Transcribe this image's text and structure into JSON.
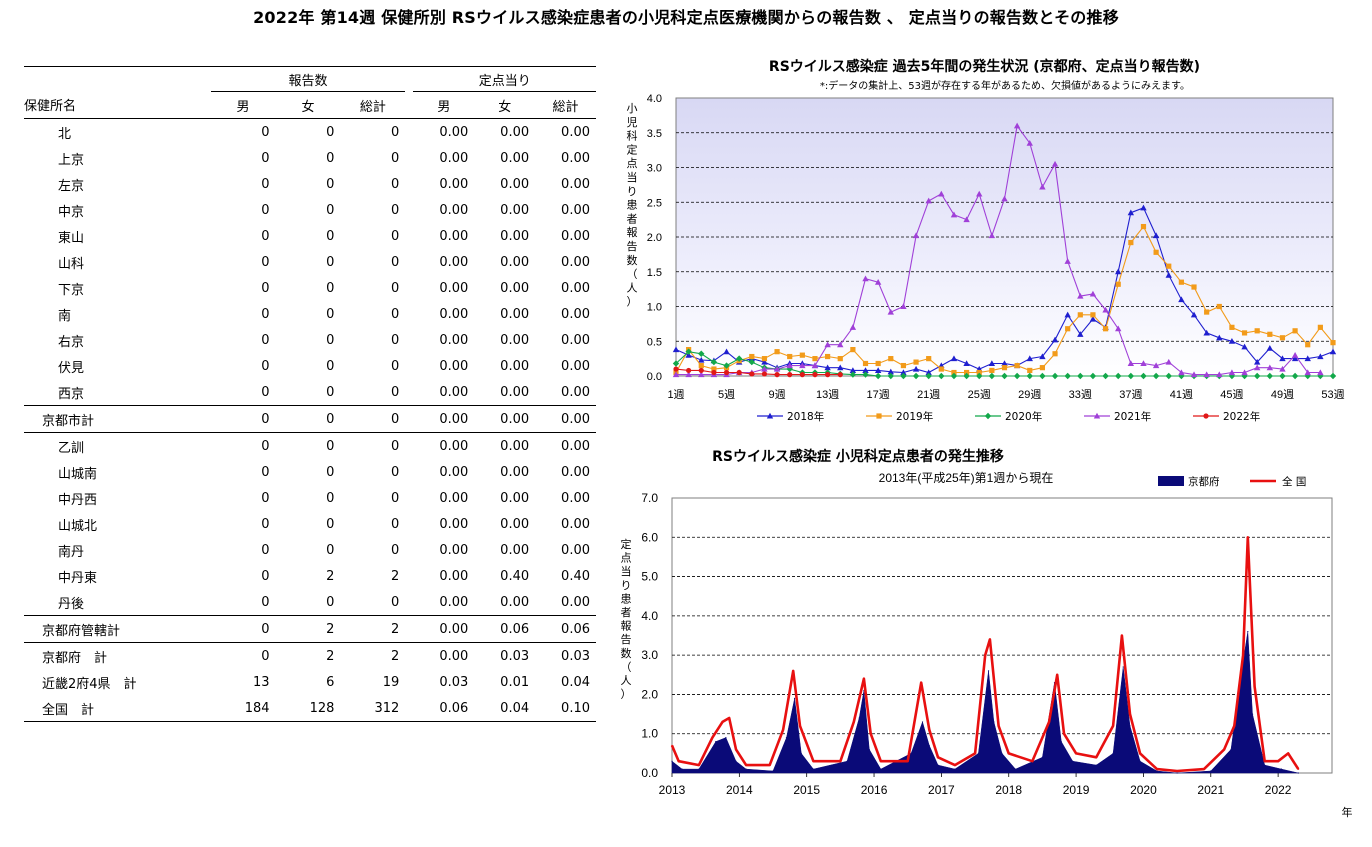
{
  "page_title": "2022年 第14週 保健所別 RSウイルス感染症患者の小児科定点医療機関からの報告数 、 定点当りの報告数とその推移",
  "table": {
    "group_reports": "報告数",
    "group_per_site": "定点当り",
    "col_name": "保健所名",
    "col_male": "男",
    "col_female": "女",
    "col_total": "総計",
    "rows": [
      {
        "name": "北",
        "m": "0",
        "f": "0",
        "t": "0",
        "pm": "0.00",
        "pf": "0.00",
        "pt": "0.00"
      },
      {
        "name": "上京",
        "m": "0",
        "f": "0",
        "t": "0",
        "pm": "0.00",
        "pf": "0.00",
        "pt": "0.00"
      },
      {
        "name": "左京",
        "m": "0",
        "f": "0",
        "t": "0",
        "pm": "0.00",
        "pf": "0.00",
        "pt": "0.00"
      },
      {
        "name": "中京",
        "m": "0",
        "f": "0",
        "t": "0",
        "pm": "0.00",
        "pf": "0.00",
        "pt": "0.00"
      },
      {
        "name": "東山",
        "m": "0",
        "f": "0",
        "t": "0",
        "pm": "0.00",
        "pf": "0.00",
        "pt": "0.00"
      },
      {
        "name": "山科",
        "m": "0",
        "f": "0",
        "t": "0",
        "pm": "0.00",
        "pf": "0.00",
        "pt": "0.00"
      },
      {
        "name": "下京",
        "m": "0",
        "f": "0",
        "t": "0",
        "pm": "0.00",
        "pf": "0.00",
        "pt": "0.00"
      },
      {
        "name": "南",
        "m": "0",
        "f": "0",
        "t": "0",
        "pm": "0.00",
        "pf": "0.00",
        "pt": "0.00"
      },
      {
        "name": "右京",
        "m": "0",
        "f": "0",
        "t": "0",
        "pm": "0.00",
        "pf": "0.00",
        "pt": "0.00"
      },
      {
        "name": "伏見",
        "m": "0",
        "f": "0",
        "t": "0",
        "pm": "0.00",
        "pf": "0.00",
        "pt": "0.00"
      },
      {
        "name": "西京",
        "m": "0",
        "f": "0",
        "t": "0",
        "pm": "0.00",
        "pf": "0.00",
        "pt": "0.00"
      },
      {
        "name": "京都市計",
        "m": "0",
        "f": "0",
        "t": "0",
        "pm": "0.00",
        "pf": "0.00",
        "pt": "0.00",
        "style": "sub"
      },
      {
        "name": "乙訓",
        "m": "0",
        "f": "0",
        "t": "0",
        "pm": "0.00",
        "pf": "0.00",
        "pt": "0.00"
      },
      {
        "name": "山城南",
        "m": "0",
        "f": "0",
        "t": "0",
        "pm": "0.00",
        "pf": "0.00",
        "pt": "0.00"
      },
      {
        "name": "中丹西",
        "m": "0",
        "f": "0",
        "t": "0",
        "pm": "0.00",
        "pf": "0.00",
        "pt": "0.00"
      },
      {
        "name": "山城北",
        "m": "0",
        "f": "0",
        "t": "0",
        "pm": "0.00",
        "pf": "0.00",
        "pt": "0.00"
      },
      {
        "name": "南丹",
        "m": "0",
        "f": "0",
        "t": "0",
        "pm": "0.00",
        "pf": "0.00",
        "pt": "0.00"
      },
      {
        "name": "中丹東",
        "m": "0",
        "f": "2",
        "t": "2",
        "pm": "0.00",
        "pf": "0.40",
        "pt": "0.40"
      },
      {
        "name": "丹後",
        "m": "0",
        "f": "0",
        "t": "0",
        "pm": "0.00",
        "pf": "0.00",
        "pt": "0.00"
      },
      {
        "name": "京都府管轄計",
        "m": "0",
        "f": "2",
        "t": "2",
        "pm": "0.00",
        "pf": "0.06",
        "pt": "0.06",
        "style": "sub"
      },
      {
        "name": "京都府　計",
        "m": "0",
        "f": "2",
        "t": "2",
        "pm": "0.00",
        "pf": "0.03",
        "pt": "0.03",
        "style": "sub"
      },
      {
        "name": "近畿2府4県　計",
        "m": "13",
        "f": "6",
        "t": "19",
        "pm": "0.03",
        "pf": "0.01",
        "pt": "0.04",
        "style": "sub"
      },
      {
        "name": "全国　計",
        "m": "184",
        "f": "128",
        "t": "312",
        "pm": "0.06",
        "pf": "0.04",
        "pt": "0.10",
        "style": "sub"
      }
    ]
  },
  "chart_data": [
    {
      "type": "line",
      "title": "RSウイルス感染症 過去5年間の発生状況 (京都府、定点当り報告数)",
      "note": "*:データの集計上、53週が存在する年があるため、欠損値があるようにみえます。",
      "ylabel": "小児科定点当り患者報告数（人）",
      "ylim": [
        0,
        4.0
      ],
      "yticks": [
        "0.0",
        "0.5",
        "1.0",
        "1.5",
        "2.0",
        "2.5",
        "3.0",
        "3.5",
        "4.0"
      ],
      "xlim": [
        1,
        53
      ],
      "xticks": [
        "1週",
        "5週",
        "9週",
        "13週",
        "17週",
        "21週",
        "25週",
        "29週",
        "33週",
        "37週",
        "41週",
        "45週",
        "49週",
        "53週"
      ],
      "grid": true,
      "legend_position": "bottom",
      "colors": {
        "background": "#e6e6f8",
        "grid": "#000000"
      },
      "series": [
        {
          "name": "2018年",
          "color": "#1f1fcf",
          "marker": "triangle",
          "values": [
            0.38,
            0.3,
            0.23,
            0.22,
            0.35,
            0.2,
            0.25,
            0.2,
            0.12,
            0.18,
            0.18,
            0.15,
            0.12,
            0.12,
            0.08,
            0.08,
            0.08,
            0.06,
            0.05,
            0.1,
            0.05,
            0.15,
            0.25,
            0.18,
            0.1,
            0.18,
            0.18,
            0.15,
            0.25,
            0.28,
            0.52,
            0.88,
            0.6,
            0.82,
            0.7,
            1.5,
            2.35,
            2.42,
            2.02,
            1.45,
            1.1,
            0.88,
            0.62,
            0.55,
            0.5,
            0.42,
            0.2,
            0.4,
            0.25,
            0.25,
            0.25,
            0.28,
            0.35
          ]
        },
        {
          "name": "2019年",
          "color": "#f29b1a",
          "marker": "square",
          "values": [
            0.05,
            0.38,
            0.15,
            0.1,
            0.12,
            0.22,
            0.28,
            0.25,
            0.35,
            0.28,
            0.3,
            0.25,
            0.28,
            0.25,
            0.38,
            0.18,
            0.18,
            0.25,
            0.15,
            0.2,
            0.25,
            0.1,
            0.05,
            0.05,
            0.05,
            0.08,
            0.12,
            0.15,
            0.08,
            0.12,
            0.32,
            0.68,
            0.88,
            0.88,
            0.68,
            1.32,
            1.92,
            2.15,
            1.78,
            1.58,
            1.35,
            1.28,
            0.92,
            1.0,
            0.7,
            0.62,
            0.65,
            0.6,
            0.55,
            0.65,
            0.45,
            0.7,
            0.48
          ]
        },
        {
          "name": "2020年",
          "color": "#12a84a",
          "marker": "diamond",
          "values": [
            0.18,
            0.35,
            0.32,
            0.2,
            0.15,
            0.25,
            0.2,
            0.12,
            0.1,
            0.1,
            0.05,
            0.05,
            0.05,
            0.03,
            0.02,
            0.02,
            0.0,
            0.0,
            0.0,
            0.0,
            0.0,
            0.0,
            0.0,
            0.0,
            0.0,
            0.0,
            0.0,
            0.0,
            0.0,
            0.0,
            0.0,
            0.0,
            0.0,
            0.0,
            0.0,
            0.0,
            0.0,
            0.0,
            0.0,
            0.0,
            0.0,
            0.0,
            0.0,
            0.0,
            0.0,
            0.0,
            0.0,
            0.0,
            0.0,
            0.0,
            0.0,
            0.0,
            0.0
          ]
        },
        {
          "name": "2021年",
          "color": "#a040d8",
          "marker": "triangle",
          "values": [
            0.02,
            0.02,
            0.02,
            0.02,
            0.02,
            0.05,
            0.05,
            0.1,
            0.1,
            0.15,
            0.15,
            0.15,
            0.45,
            0.45,
            0.7,
            1.4,
            1.35,
            0.92,
            1.0,
            2.02,
            2.52,
            2.62,
            2.32,
            2.25,
            2.62,
            2.02,
            2.55,
            3.6,
            3.35,
            2.72,
            3.05,
            1.65,
            1.15,
            1.18,
            0.95,
            0.68,
            0.18,
            0.18,
            0.15,
            0.2,
            0.05,
            0.02,
            0.02,
            0.02,
            0.05,
            0.05,
            0.12,
            0.12,
            0.1,
            0.3,
            0.05,
            0.05,
            null
          ]
        },
        {
          "name": "2022年",
          "color": "#e01818",
          "marker": "circle",
          "values": [
            0.1,
            0.08,
            0.08,
            0.05,
            0.05,
            0.05,
            0.03,
            0.03,
            0.02,
            0.02,
            0.02,
            0.02,
            0.02,
            0.02,
            null,
            null,
            null,
            null,
            null,
            null,
            null,
            null,
            null,
            null,
            null,
            null,
            null,
            null,
            null,
            null,
            null,
            null,
            null,
            null,
            null,
            null,
            null,
            null,
            null,
            null,
            null,
            null,
            null,
            null,
            null,
            null,
            null,
            null,
            null,
            null,
            null,
            null,
            null
          ]
        }
      ]
    },
    {
      "type": "area",
      "title": "RSウイルス感染症 小児科定点患者の発生推移",
      "subtitle": "2013年(平成25年)第1週から現在",
      "ylabel": "定点当り患者報告数（人）",
      "xlabel": "年",
      "ylim": [
        0,
        7.0
      ],
      "yticks": [
        "0.0",
        "1.0",
        "2.0",
        "3.0",
        "4.0",
        "5.0",
        "6.0",
        "7.0"
      ],
      "xticks": [
        "2013",
        "2014",
        "2015",
        "2016",
        "2017",
        "2018",
        "2019",
        "2020",
        "2021",
        "2022"
      ],
      "grid": true,
      "legend_position": "top-right",
      "series": [
        {
          "name": "京都府",
          "style": "area",
          "color": "#0a0a78",
          "points": [
            [
              2013.0,
              0.3
            ],
            [
              2013.15,
              0.1
            ],
            [
              2013.4,
              0.1
            ],
            [
              2013.65,
              0.8
            ],
            [
              2013.8,
              0.9
            ],
            [
              2013.95,
              0.3
            ],
            [
              2014.1,
              0.1
            ],
            [
              2014.5,
              0.05
            ],
            [
              2014.7,
              0.9
            ],
            [
              2014.82,
              1.9
            ],
            [
              2014.92,
              0.5
            ],
            [
              2015.1,
              0.1
            ],
            [
              2015.6,
              0.3
            ],
            [
              2015.78,
              1.4
            ],
            [
              2015.85,
              2.1
            ],
            [
              2015.93,
              0.6
            ],
            [
              2016.1,
              0.1
            ],
            [
              2016.55,
              0.5
            ],
            [
              2016.72,
              1.3
            ],
            [
              2016.82,
              0.7
            ],
            [
              2016.95,
              0.2
            ],
            [
              2017.2,
              0.1
            ],
            [
              2017.55,
              0.5
            ],
            [
              2017.7,
              2.6
            ],
            [
              2017.78,
              1.3
            ],
            [
              2017.9,
              0.5
            ],
            [
              2018.1,
              0.1
            ],
            [
              2018.5,
              0.4
            ],
            [
              2018.68,
              2.3
            ],
            [
              2018.78,
              0.8
            ],
            [
              2018.95,
              0.3
            ],
            [
              2019.3,
              0.2
            ],
            [
              2019.55,
              0.5
            ],
            [
              2019.7,
              2.7
            ],
            [
              2019.8,
              1.2
            ],
            [
              2019.95,
              0.3
            ],
            [
              2020.2,
              0.05
            ],
            [
              2020.5,
              0.0
            ],
            [
              2021.0,
              0.05
            ],
            [
              2021.3,
              0.6
            ],
            [
              2021.45,
              2.5
            ],
            [
              2021.55,
              3.6
            ],
            [
              2021.62,
              1.5
            ],
            [
              2021.8,
              0.2
            ],
            [
              2022.05,
              0.1
            ],
            [
              2022.3,
              0.0
            ]
          ]
        },
        {
          "name": "全 国",
          "style": "line",
          "color": "#e81010",
          "points": [
            [
              2013.0,
              0.7
            ],
            [
              2013.1,
              0.3
            ],
            [
              2013.4,
              0.2
            ],
            [
              2013.6,
              0.9
            ],
            [
              2013.75,
              1.3
            ],
            [
              2013.85,
              1.4
            ],
            [
              2013.95,
              0.6
            ],
            [
              2014.1,
              0.2
            ],
            [
              2014.45,
              0.2
            ],
            [
              2014.65,
              1.1
            ],
            [
              2014.8,
              2.6
            ],
            [
              2014.9,
              1.2
            ],
            [
              2015.1,
              0.3
            ],
            [
              2015.5,
              0.3
            ],
            [
              2015.7,
              1.3
            ],
            [
              2015.85,
              2.4
            ],
            [
              2015.95,
              1.0
            ],
            [
              2016.1,
              0.3
            ],
            [
              2016.5,
              0.3
            ],
            [
              2016.7,
              2.3
            ],
            [
              2016.82,
              1.1
            ],
            [
              2016.95,
              0.4
            ],
            [
              2017.2,
              0.2
            ],
            [
              2017.5,
              0.5
            ],
            [
              2017.65,
              3.0
            ],
            [
              2017.72,
              3.4
            ],
            [
              2017.85,
              1.2
            ],
            [
              2018.0,
              0.5
            ],
            [
              2018.35,
              0.3
            ],
            [
              2018.6,
              1.3
            ],
            [
              2018.72,
              2.5
            ],
            [
              2018.82,
              1.0
            ],
            [
              2019.0,
              0.5
            ],
            [
              2019.3,
              0.4
            ],
            [
              2019.55,
              1.2
            ],
            [
              2019.68,
              3.5
            ],
            [
              2019.8,
              1.5
            ],
            [
              2019.95,
              0.5
            ],
            [
              2020.2,
              0.1
            ],
            [
              2020.5,
              0.05
            ],
            [
              2020.9,
              0.1
            ],
            [
              2021.2,
              0.6
            ],
            [
              2021.35,
              1.2
            ],
            [
              2021.48,
              3.0
            ],
            [
              2021.55,
              6.0
            ],
            [
              2021.65,
              2.2
            ],
            [
              2021.8,
              0.3
            ],
            [
              2022.0,
              0.3
            ],
            [
              2022.15,
              0.5
            ],
            [
              2022.3,
              0.1
            ]
          ]
        }
      ]
    }
  ]
}
